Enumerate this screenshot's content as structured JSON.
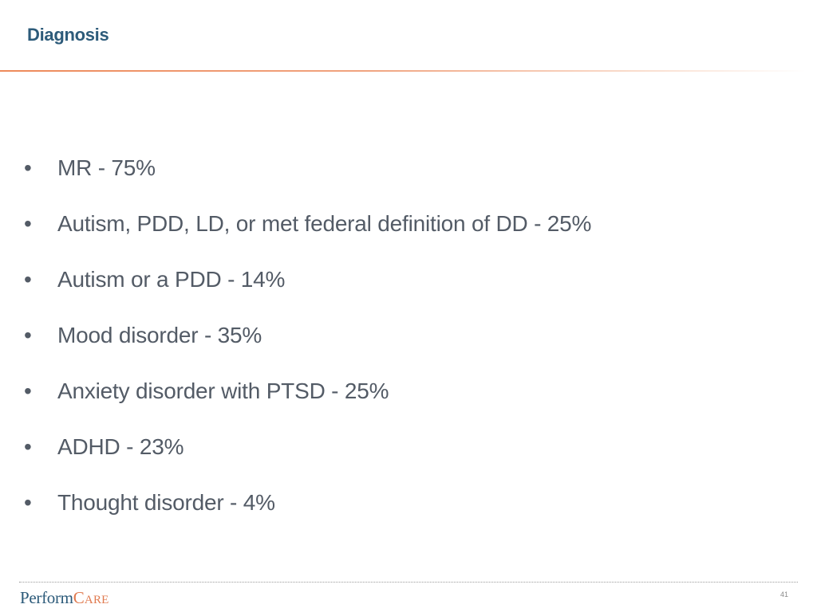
{
  "slide": {
    "title": "Diagnosis",
    "bullets": [
      "MR - 75%",
      "Autism, PDD, LD, or met federal definition of DD - 25%",
      "Autism or a PDD - 14%",
      "Mood disorder - 35%",
      "Anxiety disorder with PTSD - 25%",
      "ADHD - 23%",
      "Thought disorder - 4%"
    ],
    "bullet_glyph": "•"
  },
  "footer": {
    "logo_part1": "Perform",
    "logo_part2": "Care",
    "page_number": "41"
  },
  "colors": {
    "title": "#2d5b7a",
    "accent_rule": "#ee8a5a",
    "body_text": "#535b66",
    "logo_care": "#e07a4f"
  }
}
